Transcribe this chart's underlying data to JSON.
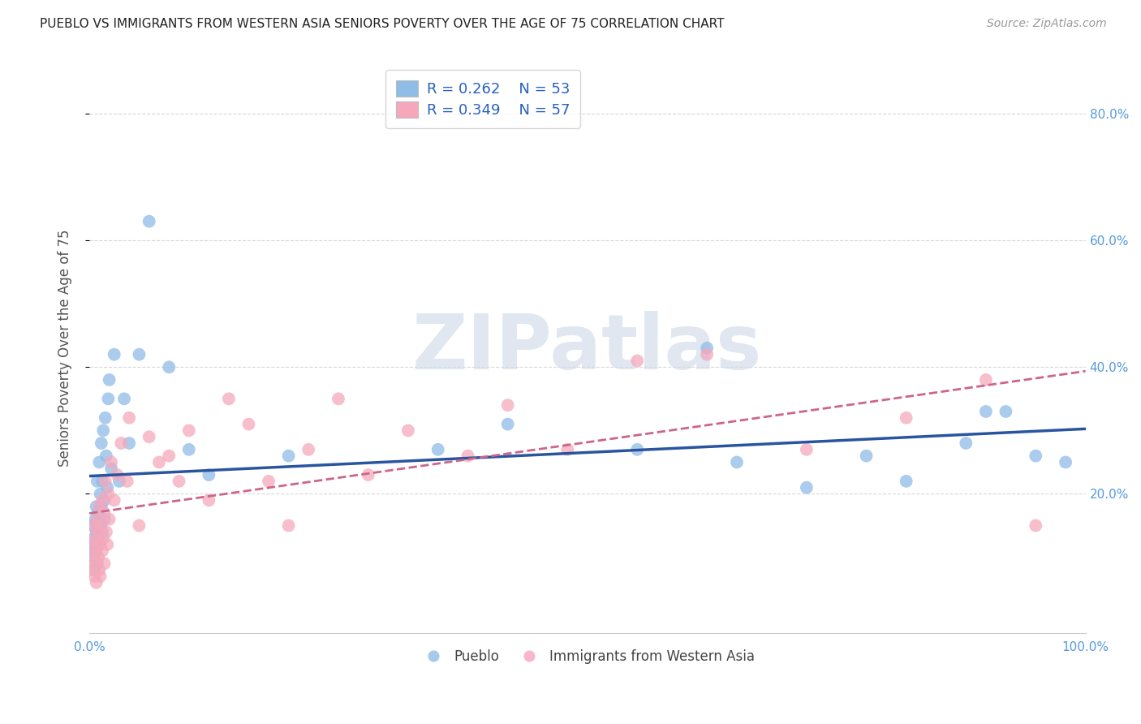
{
  "title": "PUEBLO VS IMMIGRANTS FROM WESTERN ASIA SENIORS POVERTY OVER THE AGE OF 75 CORRELATION CHART",
  "source": "Source: ZipAtlas.com",
  "ylabel": "Seniors Poverty Over the Age of 75",
  "xlim": [
    0,
    1.0
  ],
  "ylim": [
    -0.02,
    0.88
  ],
  "xticks": [
    0.0,
    0.2,
    0.4,
    0.6,
    0.8,
    1.0
  ],
  "xticklabels": [
    "0.0%",
    "",
    "",
    "",
    "",
    "100.0%"
  ],
  "yticks": [
    0.2,
    0.4,
    0.6,
    0.8
  ],
  "yticklabels": [
    "20.0%",
    "40.0%",
    "60.0%",
    "80.0%"
  ],
  "pueblo_R": "0.262",
  "pueblo_N": "53",
  "western_asia_R": "0.349",
  "western_asia_N": "57",
  "pueblo_color": "#90bce8",
  "western_asia_color": "#f5a8bc",
  "pueblo_line_color": "#2955a0",
  "western_asia_line_color": "#cc6688",
  "background_color": "#ffffff",
  "watermark_color": "#ccd8e8",
  "legend_color": "#2860c0",
  "grid_color": "#d8d8d8",
  "pueblo_x": [
    0.002,
    0.003,
    0.004,
    0.005,
    0.005,
    0.006,
    0.006,
    0.007,
    0.007,
    0.008,
    0.008,
    0.009,
    0.009,
    0.01,
    0.01,
    0.011,
    0.011,
    0.012,
    0.012,
    0.013,
    0.013,
    0.014,
    0.015,
    0.015,
    0.016,
    0.017,
    0.018,
    0.019,
    0.02,
    0.022,
    0.025,
    0.03,
    0.035,
    0.04,
    0.05,
    0.06,
    0.08,
    0.1,
    0.12,
    0.2,
    0.35,
    0.42,
    0.55,
    0.62,
    0.65,
    0.72,
    0.78,
    0.82,
    0.88,
    0.9,
    0.92,
    0.95,
    0.98
  ],
  "pueblo_y": [
    0.12,
    0.15,
    0.1,
    0.13,
    0.08,
    0.16,
    0.11,
    0.18,
    0.14,
    0.22,
    0.09,
    0.17,
    0.13,
    0.25,
    0.12,
    0.2,
    0.15,
    0.28,
    0.18,
    0.22,
    0.14,
    0.3,
    0.19,
    0.16,
    0.32,
    0.26,
    0.21,
    0.35,
    0.38,
    0.24,
    0.42,
    0.22,
    0.35,
    0.28,
    0.42,
    0.63,
    0.4,
    0.27,
    0.23,
    0.26,
    0.27,
    0.31,
    0.27,
    0.43,
    0.25,
    0.21,
    0.26,
    0.22,
    0.28,
    0.33,
    0.33,
    0.26,
    0.25
  ],
  "western_asia_x": [
    0.002,
    0.003,
    0.004,
    0.005,
    0.005,
    0.006,
    0.006,
    0.007,
    0.007,
    0.008,
    0.009,
    0.009,
    0.01,
    0.01,
    0.011,
    0.011,
    0.012,
    0.013,
    0.013,
    0.014,
    0.015,
    0.015,
    0.016,
    0.017,
    0.018,
    0.019,
    0.02,
    0.022,
    0.025,
    0.028,
    0.032,
    0.038,
    0.04,
    0.05,
    0.06,
    0.07,
    0.08,
    0.09,
    0.1,
    0.12,
    0.14,
    0.16,
    0.18,
    0.2,
    0.22,
    0.25,
    0.28,
    0.32,
    0.38,
    0.42,
    0.48,
    0.55,
    0.62,
    0.72,
    0.82,
    0.9,
    0.95
  ],
  "western_asia_y": [
    0.08,
    0.12,
    0.1,
    0.07,
    0.15,
    0.09,
    0.13,
    0.06,
    0.11,
    0.16,
    0.1,
    0.14,
    0.08,
    0.18,
    0.12,
    0.07,
    0.15,
    0.11,
    0.19,
    0.13,
    0.17,
    0.09,
    0.22,
    0.14,
    0.12,
    0.2,
    0.16,
    0.25,
    0.19,
    0.23,
    0.28,
    0.22,
    0.32,
    0.15,
    0.29,
    0.25,
    0.26,
    0.22,
    0.3,
    0.19,
    0.35,
    0.31,
    0.22,
    0.15,
    0.27,
    0.35,
    0.23,
    0.3,
    0.26,
    0.34,
    0.27,
    0.41,
    0.42,
    0.27,
    0.32,
    0.38,
    0.15
  ]
}
